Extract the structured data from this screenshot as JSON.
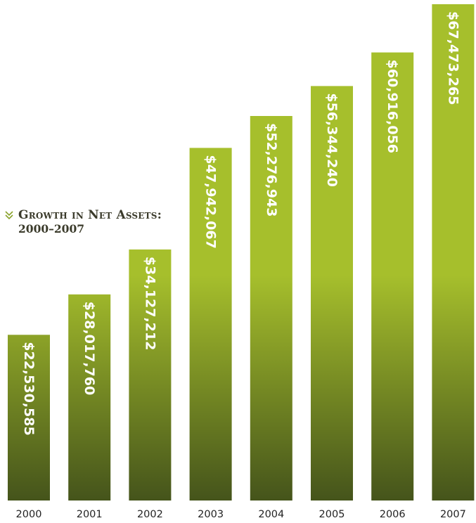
{
  "chart_data": {
    "type": "bar",
    "title": "Growth in Net Assets:",
    "subtitle": "2000–2007",
    "categories": [
      "2000",
      "2001",
      "2002",
      "2003",
      "2004",
      "2005",
      "2006",
      "2007"
    ],
    "values": [
      22530585,
      28017760,
      34127212,
      47942067,
      52276943,
      56344240,
      60916056,
      67473265
    ],
    "data_labels": [
      "$22,530,585",
      "$28,017,760",
      "$34,127,212",
      "$47,942,067",
      "$52,276,943",
      "$56,344,240",
      "$60,916,056",
      "$67,473,265"
    ],
    "xlabel": "",
    "ylabel": "",
    "ylim": [
      0,
      70000000
    ],
    "grid": false,
    "colors": {
      "bar_top": "#a6bf2c",
      "bar_bottom": "#45541b",
      "label": "#ffffff",
      "title": "#3a3a2a",
      "chevron": "#8aa32c"
    }
  },
  "icons": {
    "title_marker": "double-chevron-down-icon"
  }
}
